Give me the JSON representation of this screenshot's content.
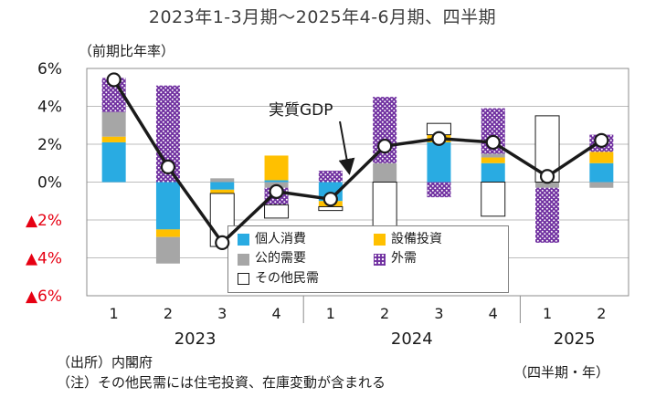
{
  "chart_data": {
    "type": "bar",
    "subtype": "stacked-bar-with-line",
    "title": "2023年1-3月期～2025年4-6月期、四半期",
    "unit_label": "（前期比年率）",
    "categories": [
      "1",
      "2",
      "3",
      "4",
      "1",
      "2",
      "3",
      "4",
      "1",
      "2"
    ],
    "year_groups": [
      {
        "label": "2023",
        "start": 0,
        "count": 4
      },
      {
        "label": "2024",
        "start": 4,
        "count": 4
      },
      {
        "label": "2025",
        "start": 8,
        "count": 2
      }
    ],
    "ylim": [
      -6,
      6
    ],
    "grid": true,
    "y_ticks": [
      {
        "value": 6,
        "label": "6%",
        "color": "#1a1a1a"
      },
      {
        "value": 4,
        "label": "4%",
        "color": "#1a1a1a"
      },
      {
        "value": 2,
        "label": "2%",
        "color": "#1a1a1a"
      },
      {
        "value": 0,
        "label": "0%",
        "color": "#1a1a1a"
      },
      {
        "value": -2,
        "label": "▲2%",
        "color": "#e60012"
      },
      {
        "value": -4,
        "label": "▲4%",
        "color": "#e60012"
      },
      {
        "value": -6,
        "label": "▲6%",
        "color": "#e60012"
      }
    ],
    "series": [
      {
        "name": "個人消費",
        "color": "#29abe2",
        "pattern": "solid",
        "values": [
          2.1,
          -2.5,
          -0.4,
          0.1,
          -1.0,
          0.0,
          2.1,
          1.0,
          0.0,
          1.0
        ]
      },
      {
        "name": "設備投資",
        "color": "#ffc000",
        "pattern": "solid",
        "values": [
          0.3,
          -0.4,
          -0.2,
          1.3,
          -0.3,
          0.0,
          0.4,
          0.3,
          0.0,
          0.6
        ]
      },
      {
        "name": "公的需要",
        "color": "#a6a6a6",
        "pattern": "solid",
        "values": [
          1.3,
          -1.4,
          0.2,
          -0.3,
          0.0,
          1.0,
          0.0,
          0.2,
          -0.3,
          -0.3
        ]
      },
      {
        "name": "外需",
        "color": "#7030a0",
        "pattern": "dots",
        "values": [
          1.8,
          5.1,
          0.0,
          -0.9,
          0.6,
          3.5,
          -0.8,
          2.4,
          -2.9,
          0.9
        ]
      },
      {
        "name": "その他民需",
        "color": "#ffffff",
        "pattern": "outline",
        "values": [
          0.0,
          0.0,
          -2.8,
          -0.7,
          -0.2,
          -2.6,
          0.6,
          -1.8,
          3.5,
          0.0
        ]
      }
    ],
    "line_series": {
      "name": "実質GDP",
      "color": "#1a1a1a",
      "values": [
        5.4,
        0.8,
        -3.2,
        -0.5,
        -0.9,
        1.9,
        2.3,
        2.1,
        0.3,
        2.2
      ]
    },
    "annotation": {
      "label": "実質GDP"
    },
    "legend_position": "inside-bottom-center",
    "notes": {
      "source": "（出所）内閣府",
      "note": "（注）その他民需には住宅投資、在庫変動が含まれる",
      "axis_note": "（四半期・年）"
    }
  }
}
